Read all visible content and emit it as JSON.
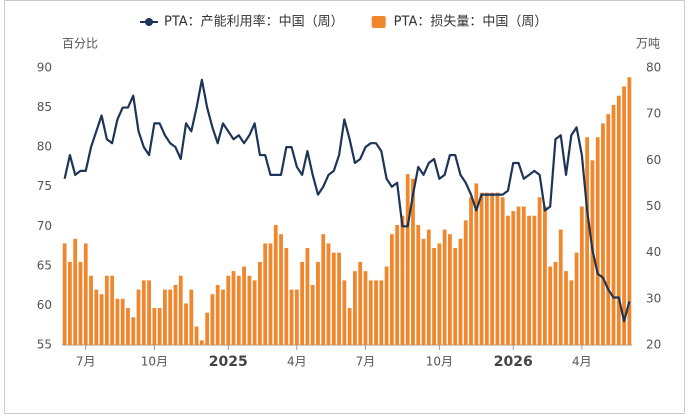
{
  "chart_data": {
    "type": "combo",
    "categories": [
      null,
      null,
      null,
      null,
      "7月",
      null,
      null,
      null,
      null,
      null,
      null,
      null,
      null,
      null,
      null,
      null,
      null,
      "10月",
      null,
      null,
      null,
      null,
      null,
      null,
      null,
      null,
      null,
      null,
      null,
      null,
      null,
      "2025",
      null,
      null,
      null,
      null,
      null,
      null,
      null,
      null,
      null,
      null,
      null,
      null,
      "4月",
      null,
      null,
      null,
      null,
      null,
      null,
      null,
      null,
      null,
      null,
      null,
      null,
      "7月",
      null,
      null,
      null,
      null,
      null,
      null,
      null,
      null,
      null,
      null,
      null,
      null,
      null,
      "10月",
      null,
      null,
      null,
      null,
      null,
      null,
      null,
      null,
      null,
      null,
      null,
      null,
      null,
      "2026",
      null,
      null,
      null,
      null,
      null,
      null,
      null,
      null,
      null,
      null,
      null,
      null,
      "4月",
      null,
      null,
      null,
      null,
      null,
      null,
      null,
      null,
      null
    ],
    "series": [
      {
        "name": "PTA：产能利用率：中国（周）",
        "type": "line",
        "axis": "y",
        "color": "#1d3557",
        "values": [
          76,
          79,
          76.5,
          77,
          77,
          80,
          82,
          84,
          81,
          80.5,
          83.5,
          85,
          85,
          86.5,
          82,
          80,
          79,
          83,
          83,
          81.5,
          80.5,
          80,
          78.5,
          83,
          82,
          85,
          88.5,
          85,
          82.5,
          80.5,
          83,
          82,
          81,
          81.5,
          80.5,
          81.5,
          83,
          79,
          79,
          76.5,
          76.5,
          76.5,
          80,
          80,
          77.5,
          76.5,
          79.5,
          76.5,
          74,
          75,
          76.5,
          77,
          79,
          83.5,
          81,
          78,
          78.5,
          80,
          80.5,
          80.5,
          79.5,
          76,
          75,
          75.5,
          70,
          70,
          74,
          77.5,
          76.5,
          78,
          78.5,
          76,
          76.5,
          79,
          79,
          76.5,
          75.5,
          74,
          72,
          74,
          74,
          74,
          74,
          74,
          74.5,
          78,
          78,
          76,
          76.5,
          77,
          76.5,
          72,
          72.5,
          81,
          81.5,
          76.5,
          81.5,
          82.5,
          79,
          72,
          67,
          64,
          63.5,
          62,
          61,
          61,
          58,
          60.5
        ]
      },
      {
        "name": "PTA：损失量：中国（周）",
        "type": "bar",
        "axis": "y2",
        "color": "#f0872d",
        "values": [
          42,
          38,
          43,
          38,
          42,
          35,
          32,
          31,
          35,
          35,
          30,
          30,
          28,
          26,
          32,
          34,
          34,
          28,
          28,
          32,
          32,
          33,
          35,
          29,
          32,
          24,
          21,
          27,
          31,
          33,
          32,
          35,
          36,
          35,
          37,
          35,
          34,
          38,
          42,
          42,
          46,
          44,
          41,
          32,
          32,
          38,
          41,
          33,
          38,
          44,
          42,
          40,
          40,
          34,
          28,
          36,
          38,
          36,
          34,
          34,
          34,
          37,
          44,
          46,
          48,
          57,
          56,
          46,
          43,
          45,
          41,
          42,
          45,
          44,
          41,
          43,
          47,
          52,
          55,
          53,
          53,
          53,
          53,
          52,
          48,
          49,
          50,
          50,
          48,
          48,
          52,
          50,
          37,
          38,
          45,
          36,
          34,
          40,
          50,
          65,
          60,
          65,
          68,
          70,
          72,
          74,
          76,
          78
        ]
      }
    ],
    "ylabel": "百分比",
    "y2label": "万吨",
    "ylim": [
      55,
      90
    ],
    "yticks": [
      55,
      60,
      65,
      70,
      75,
      80,
      85,
      90
    ],
    "y2lim": [
      20,
      80
    ],
    "y2ticks": [
      20,
      30,
      40,
      50,
      60,
      70,
      80
    ],
    "legend": "top"
  }
}
